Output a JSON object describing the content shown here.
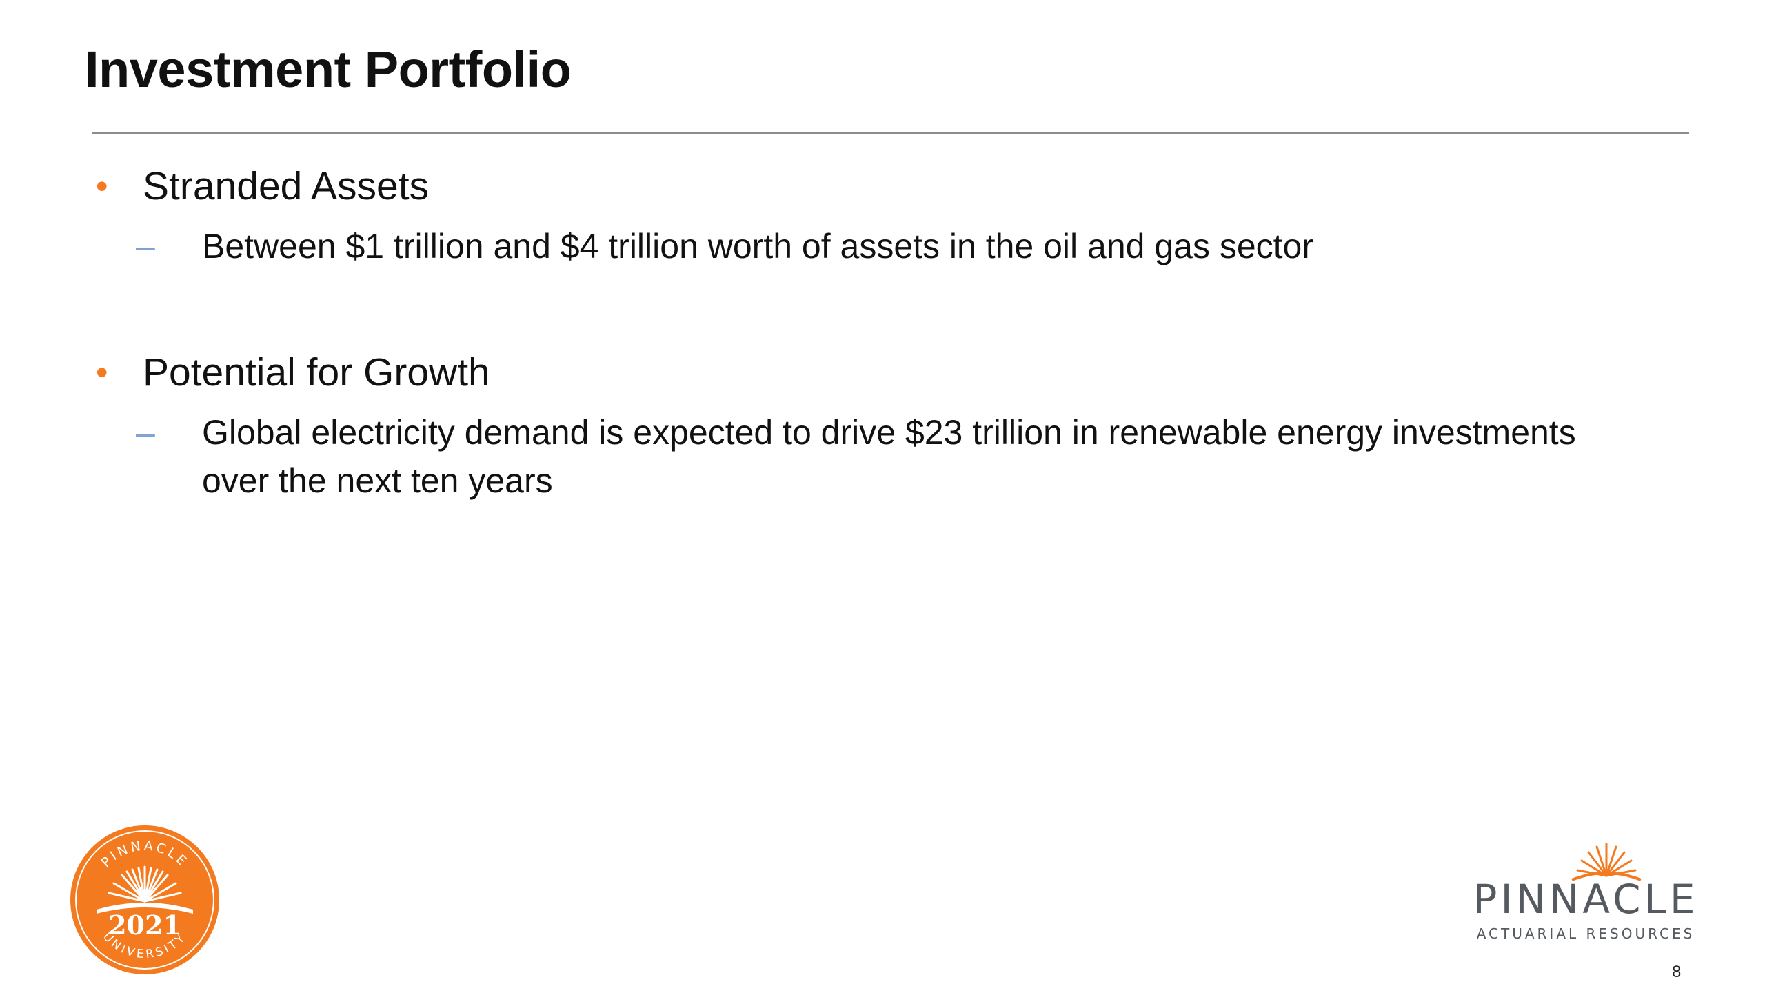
{
  "slide": {
    "title": "Investment Portfolio",
    "bullets": [
      {
        "text": "Stranded Assets",
        "sub": [
          "Between $1 trillion and $4 trillion worth of assets in the oil and gas sector"
        ]
      },
      {
        "text": "Potential for Growth",
        "sub": [
          "Global electricity demand is expected to drive $23 trillion in renewable energy investments over the next ten years"
        ]
      }
    ],
    "page_number": "8"
  },
  "logos": {
    "seal": {
      "top_text": "PINNACLE",
      "year": "2021",
      "bottom_text": "UNIVERSITY",
      "color": "#f47a1f"
    },
    "brand": {
      "name": "PINNACLE",
      "tagline": "ACTUARIAL RESOURCES",
      "accent": "#f47a1f",
      "text_color": "#555a60"
    }
  },
  "colors": {
    "bullet": "#f47a1f",
    "sub_dash": "#7fa3d3",
    "rule": "#8c8c8c"
  }
}
